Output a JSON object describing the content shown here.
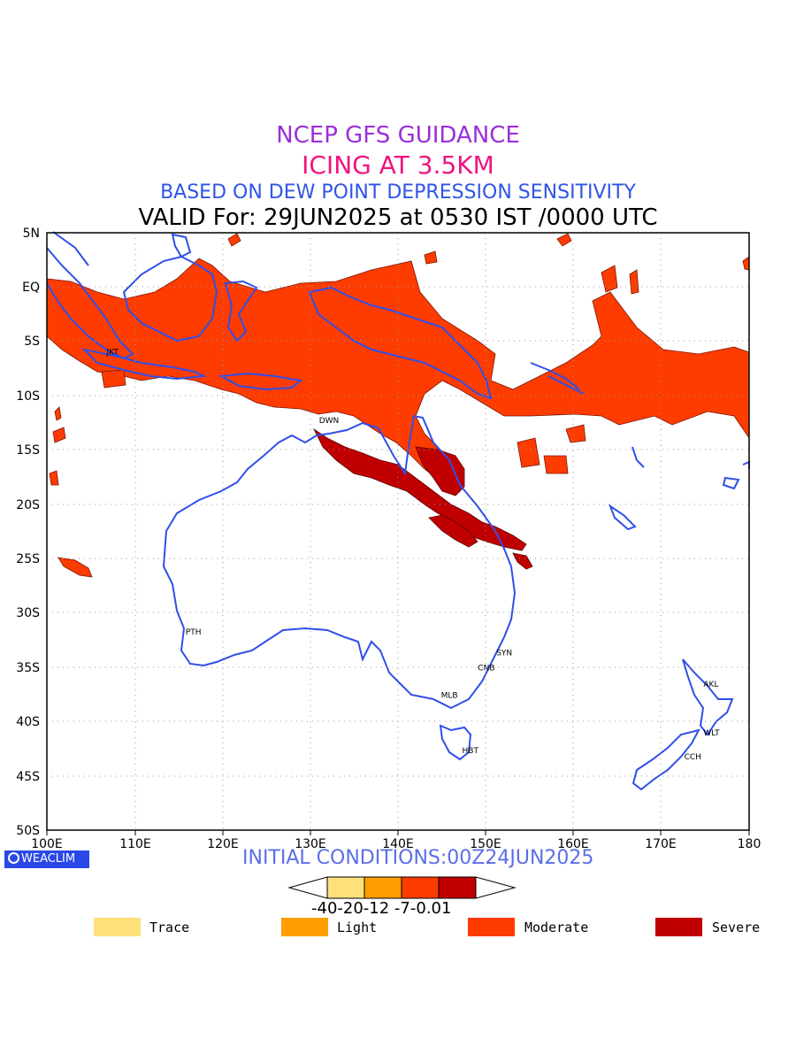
{
  "titles": {
    "line1": "NCEP GFS GUIDANCE",
    "line2": "ICING AT 3.5KM",
    "line3": "BASED ON DEW POINT DEPRESSION SENSITIVITY",
    "line4": "VALID For: 29JUN2025 at 0530 IST /0000 UTC"
  },
  "map": {
    "lon_ticks": [
      "100E",
      "110E",
      "120E",
      "130E",
      "140E",
      "150E",
      "160E",
      "170E",
      "180"
    ],
    "lat_ticks": [
      "5N",
      "EQ",
      "5S",
      "10S",
      "15S",
      "20S",
      "25S",
      "30S",
      "35S",
      "40S",
      "45S",
      "50S"
    ],
    "cities": [
      {
        "name": "DWN",
        "lon": 131.0,
        "lat": -12.5
      },
      {
        "name": "PTH",
        "lon": 115.8,
        "lat": -32.0
      },
      {
        "name": "SYN",
        "lon": 151.2,
        "lat": -33.9
      },
      {
        "name": "CNB",
        "lon": 149.1,
        "lat": -35.3
      },
      {
        "name": "MLB",
        "lon": 144.9,
        "lat": -37.8
      },
      {
        "name": "HBT",
        "lon": 147.3,
        "lat": -42.9
      },
      {
        "name": "AKL",
        "lon": 174.8,
        "lat": -36.8
      },
      {
        "name": "WLT",
        "lon": 174.8,
        "lat": -41.3
      },
      {
        "name": "CCH",
        "lon": 172.6,
        "lat": -43.5
      },
      {
        "name": "JKT",
        "lon": 106.8,
        "lat": -6.2
      }
    ]
  },
  "footer": {
    "logo": "WEACLIM",
    "initial_conditions": "INITIAL CONDITIONS:00Z24JUN2025"
  },
  "colorbar": {
    "labels": "-40-20-12 -7-0.01",
    "colors": [
      "#ffe17a",
      "#ff9e00",
      "#ff3c00",
      "#c00000"
    ]
  },
  "legend": [
    {
      "label": "Trace",
      "color": "#ffe17a"
    },
    {
      "label": "Light",
      "color": "#ff9e00"
    },
    {
      "label": "Moderate",
      "color": "#ff3c00"
    },
    {
      "label": "Severe",
      "color": "#c00000"
    }
  ]
}
